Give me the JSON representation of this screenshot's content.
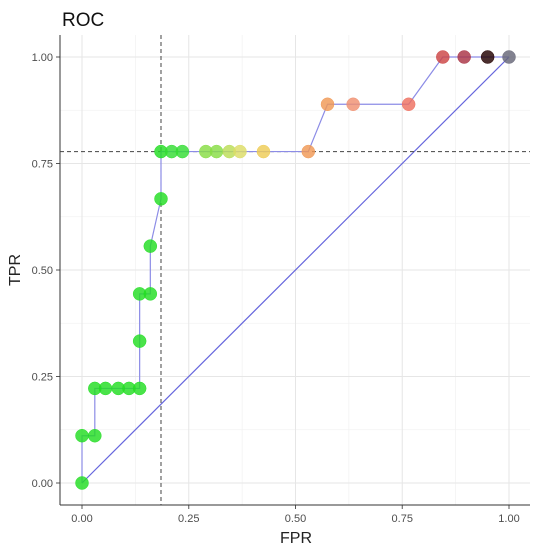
{
  "chart_data": {
    "type": "line",
    "title": "ROC",
    "xlabel": "FPR",
    "ylabel": "TPR",
    "xlim": [
      0,
      1
    ],
    "ylim": [
      0,
      1
    ],
    "x_ticks": [
      "0.00",
      "0.25",
      "0.50",
      "0.75",
      "1.00"
    ],
    "y_ticks": [
      "0.00",
      "0.25",
      "0.50",
      "0.75",
      "1.00"
    ],
    "x_tick_values": [
      0,
      0.25,
      0.5,
      0.75,
      1
    ],
    "y_tick_values": [
      0,
      0.25,
      0.5,
      0.75,
      1
    ],
    "grid": true,
    "diagonal": {
      "from": [
        0,
        0
      ],
      "to": [
        1,
        1
      ],
      "color": "#6666dd"
    },
    "reference_lines": {
      "fpr": 0.185,
      "tpr": 0.778
    },
    "roc_line_color": "#8c8ce6",
    "points": [
      {
        "fpr": 0.0,
        "tpr": 0.0,
        "color": "#22dd22"
      },
      {
        "fpr": 0.0,
        "tpr": 0.111,
        "color": "#22dd22"
      },
      {
        "fpr": 0.03,
        "tpr": 0.111,
        "color": "#22dd22"
      },
      {
        "fpr": 0.03,
        "tpr": 0.222,
        "color": "#22dd22"
      },
      {
        "fpr": 0.055,
        "tpr": 0.222,
        "color": "#22dd22"
      },
      {
        "fpr": 0.085,
        "tpr": 0.222,
        "color": "#22dd22"
      },
      {
        "fpr": 0.11,
        "tpr": 0.222,
        "color": "#22dd22"
      },
      {
        "fpr": 0.135,
        "tpr": 0.222,
        "color": "#22dd22"
      },
      {
        "fpr": 0.135,
        "tpr": 0.333,
        "color": "#22dd22"
      },
      {
        "fpr": 0.135,
        "tpr": 0.444,
        "color": "#22dd22"
      },
      {
        "fpr": 0.16,
        "tpr": 0.444,
        "color": "#22dd22"
      },
      {
        "fpr": 0.16,
        "tpr": 0.556,
        "color": "#22dd22"
      },
      {
        "fpr": 0.185,
        "tpr": 0.667,
        "color": "#22dd22"
      },
      {
        "fpr": 0.185,
        "tpr": 0.778,
        "color": "#22dd22"
      },
      {
        "fpr": 0.21,
        "tpr": 0.778,
        "color": "#33dd33"
      },
      {
        "fpr": 0.235,
        "tpr": 0.778,
        "color": "#33dd33"
      },
      {
        "fpr": 0.29,
        "tpr": 0.778,
        "color": "#88dd44"
      },
      {
        "fpr": 0.315,
        "tpr": 0.778,
        "color": "#88dd44"
      },
      {
        "fpr": 0.345,
        "tpr": 0.778,
        "color": "#bbdd55"
      },
      {
        "fpr": 0.37,
        "tpr": 0.778,
        "color": "#dddd66"
      },
      {
        "fpr": 0.425,
        "tpr": 0.778,
        "color": "#eecc55"
      },
      {
        "fpr": 0.53,
        "tpr": 0.778,
        "color": "#f09955"
      },
      {
        "fpr": 0.575,
        "tpr": 0.889,
        "color": "#f09955"
      },
      {
        "fpr": 0.635,
        "tpr": 0.889,
        "color": "#f09070"
      },
      {
        "fpr": 0.765,
        "tpr": 0.889,
        "color": "#ee7060"
      },
      {
        "fpr": 0.845,
        "tpr": 1.0,
        "color": "#cc4444"
      },
      {
        "fpr": 0.895,
        "tpr": 1.0,
        "color": "#aa3344"
      },
      {
        "fpr": 0.95,
        "tpr": 1.0,
        "color": "#220000"
      },
      {
        "fpr": 1.0,
        "tpr": 1.0,
        "color": "#666677"
      }
    ]
  }
}
